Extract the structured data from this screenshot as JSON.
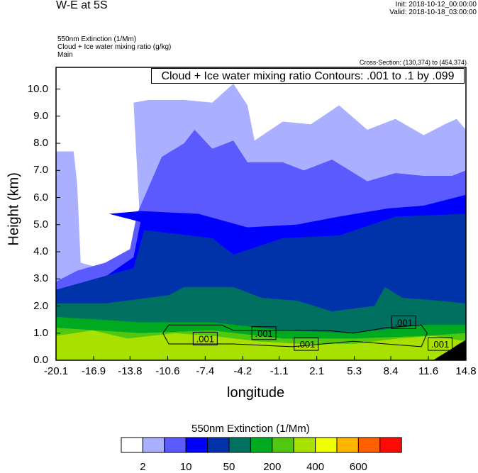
{
  "header": {
    "title": "W-E at 5S",
    "init": "Init: 2018-10-12_00:00:00",
    "valid": "Valid: 2018-10-18_03:00:00",
    "field1": "550nm Extinction   (1/Mm)",
    "field2": "Cloud + Ice water mixing ratio   (g/kg)",
    "field3": "Main",
    "cross_section": "Cross-Section: (130,374) to (454,374)"
  },
  "chart_data": {
    "type": "contour-cross-section",
    "title": "W-E at 5S",
    "contour_annotation": "Cloud + Ice water mixing ratio Contours: .001 to .1 by .099",
    "xlabel": "longitude",
    "ylabel": "Height (km)",
    "xlim": [
      -20.1,
      14.8
    ],
    "ylim": [
      0,
      10.8
    ],
    "xticks": [
      "-20.1",
      "-16.9",
      "-13.8",
      "-10.6",
      "-7.4",
      "-4.2",
      "-1.1",
      "2.1",
      "5.3",
      "8.4",
      "11.6",
      "14.8"
    ],
    "yticks": [
      "0.0",
      "1.0",
      "2.0",
      "3.0",
      "4.0",
      "5.0",
      "6.0",
      "7.0",
      "8.0",
      "9.0",
      "10.0"
    ],
    "colorbar": {
      "title": "550nm Extinction  (1/Mm)",
      "labels": [
        "2",
        "10",
        "50",
        "200",
        "400",
        "600"
      ],
      "colors": [
        "#ffffff",
        "#aab0ff",
        "#5a5aff",
        "#0000ff",
        "#0033aa",
        "#007060",
        "#00aa20",
        "#50c810",
        "#a8e000",
        "#f0ff00",
        "#ffb400",
        "#ff6000",
        "#ff0a00"
      ]
    },
    "layers": [
      {
        "color": "#aab0ff",
        "top": [
          [
            -20.1,
            7.7
          ],
          [
            -18.6,
            7.7
          ],
          [
            -18.3,
            6.5
          ],
          [
            -18.0,
            3.6
          ],
          [
            -15.6,
            3.3
          ],
          [
            -13.5,
            3.5
          ],
          [
            -12.9,
            4.7
          ],
          [
            -13.5,
            9.5
          ],
          [
            -12.2,
            9.6
          ],
          [
            -9.2,
            9.6
          ],
          [
            -6.8,
            9.5
          ],
          [
            -5.0,
            10.2
          ],
          [
            -3.8,
            9.4
          ],
          [
            -3.2,
            8.1
          ],
          [
            -0.8,
            8.8
          ],
          [
            1.6,
            8.7
          ],
          [
            4.0,
            9.4
          ],
          [
            6.4,
            8.5
          ],
          [
            8.8,
            8.9
          ],
          [
            11.2,
            8.3
          ],
          [
            13.0,
            8.7
          ],
          [
            14.0,
            8.9
          ],
          [
            14.8,
            8.5
          ]
        ]
      },
      {
        "color": "#5a5aff",
        "top": [
          [
            -20.1,
            2.9
          ],
          [
            -18.3,
            3.3
          ],
          [
            -15.9,
            3.6
          ],
          [
            -13.8,
            4.1
          ],
          [
            -13.2,
            5.4
          ],
          [
            -11.1,
            7.5
          ],
          [
            -9.2,
            8.0
          ],
          [
            -8.3,
            8.5
          ],
          [
            -6.8,
            7.8
          ],
          [
            -5.0,
            8.1
          ],
          [
            -3.8,
            7.3
          ],
          [
            -0.8,
            7.3
          ],
          [
            1.0,
            7.0
          ],
          [
            3.4,
            7.4
          ],
          [
            6.4,
            6.6
          ],
          [
            8.8,
            6.9
          ],
          [
            11.2,
            6.8
          ],
          [
            13.6,
            6.8
          ],
          [
            14.8,
            7.0
          ]
        ]
      },
      {
        "color": "#0000ff",
        "top": [
          [
            -20.1,
            2.6
          ],
          [
            -16.5,
            2.9
          ],
          [
            -13.5,
            3.8
          ],
          [
            -12.9,
            5.1
          ],
          [
            -15.6,
            5.4
          ],
          [
            -12.9,
            5.5
          ],
          [
            -8.0,
            5.4
          ],
          [
            -3.8,
            4.9
          ],
          [
            0.4,
            5.0
          ],
          [
            4.0,
            5.3
          ],
          [
            8.2,
            5.6
          ],
          [
            11.2,
            5.7
          ],
          [
            14.8,
            6.1
          ]
        ]
      },
      {
        "color": "#0033aa",
        "top": [
          [
            -20.1,
            2.6
          ],
          [
            -13.5,
            3.4
          ],
          [
            -12.6,
            4.8
          ],
          [
            -6.8,
            4.5
          ],
          [
            -5.0,
            3.9
          ],
          [
            -0.8,
            4.5
          ],
          [
            4.0,
            4.6
          ],
          [
            8.8,
            5.3
          ],
          [
            14.8,
            5.4
          ]
        ]
      },
      {
        "color": "#007060",
        "top": [
          [
            -20.1,
            2.1
          ],
          [
            -15.9,
            2.1
          ],
          [
            -10.5,
            2.4
          ],
          [
            -9.2,
            2.7
          ],
          [
            -5.0,
            2.7
          ],
          [
            -2.6,
            2.3
          ],
          [
            0.4,
            2.2
          ],
          [
            3.4,
            1.8
          ],
          [
            7.0,
            2.0
          ],
          [
            7.9,
            2.7
          ],
          [
            9.4,
            2.3
          ],
          [
            12.4,
            2.2
          ],
          [
            14.8,
            2.1
          ]
        ]
      },
      {
        "color": "#00aa20",
        "top": [
          [
            -20.1,
            1.6
          ],
          [
            -12.9,
            1.4
          ],
          [
            -6.8,
            1.4
          ],
          [
            -0.8,
            1.1
          ],
          [
            5.2,
            1.0
          ],
          [
            11.2,
            1.3
          ],
          [
            14.8,
            1.3
          ]
        ]
      },
      {
        "color": "#50c810",
        "top": [
          [
            -20.1,
            1.2
          ],
          [
            -12.9,
            1.0
          ],
          [
            -6.8,
            1.1
          ],
          [
            -0.8,
            0.8
          ],
          [
            5.2,
            0.8
          ],
          [
            11.2,
            0.9
          ],
          [
            14.8,
            1.0
          ]
        ]
      },
      {
        "color": "#a8e000",
        "top": [
          [
            -20.1,
            0.9
          ],
          [
            -17.0,
            1.1
          ],
          [
            -14.0,
            0.8
          ],
          [
            -10.0,
            1.0
          ],
          [
            -6.8,
            0.9
          ],
          [
            -3.0,
            0.7
          ],
          [
            1.0,
            0.6
          ],
          [
            5.2,
            0.6
          ],
          [
            9.0,
            0.8
          ],
          [
            12.0,
            0.9
          ],
          [
            14.8,
            0.7
          ]
        ]
      }
    ],
    "contour_labels": [
      {
        "text": ".001",
        "lon": -7.4,
        "h": 0.8
      },
      {
        "text": ".001",
        "lon": -2.4,
        "h": 1.0
      },
      {
        "text": ".001",
        "lon": 1.2,
        "h": 0.6
      },
      {
        "text": ".001",
        "lon": 9.5,
        "h": 1.4
      },
      {
        "text": ".001",
        "lon": 12.6,
        "h": 0.6
      }
    ],
    "contour_line": [
      [
        -11.0,
        1.0
      ],
      [
        -10.5,
        1.3
      ],
      [
        -6.0,
        1.3
      ],
      [
        -5.0,
        1.1
      ],
      [
        3.0,
        1.1
      ],
      [
        5.2,
        1.0
      ],
      [
        8.0,
        1.2
      ],
      [
        11.0,
        1.3
      ],
      [
        11.5,
        1.0
      ],
      [
        11.0,
        0.5
      ],
      [
        8.0,
        0.6
      ],
      [
        5.2,
        0.7
      ],
      [
        0,
        0.5
      ],
      [
        -5,
        0.6
      ],
      [
        -10.5,
        0.6
      ],
      [
        -11.0,
        1.0
      ]
    ],
    "terrain": [
      [
        12.0,
        0
      ],
      [
        13.5,
        0.4
      ],
      [
        14.2,
        0.6
      ],
      [
        14.8,
        0.75
      ],
      [
        14.8,
        0
      ]
    ]
  }
}
